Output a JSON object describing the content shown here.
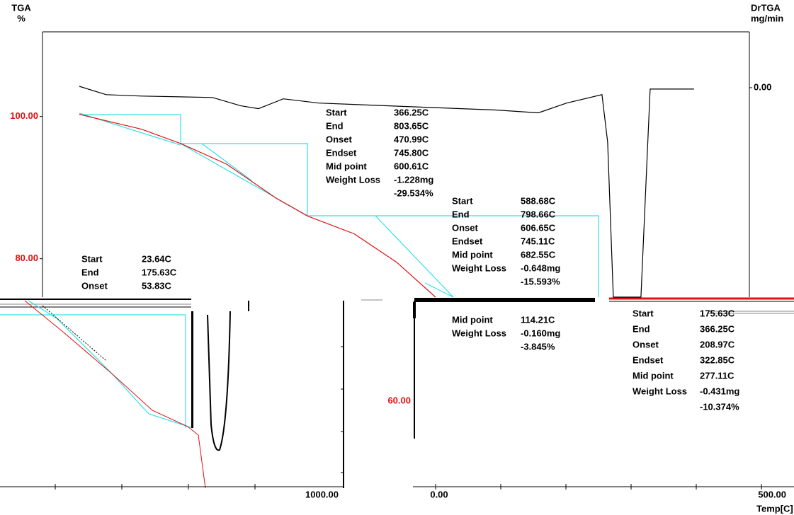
{
  "chart_data": {
    "type": "line",
    "ylabel": "TGA",
    "yunit": "%",
    "y2label": "DrTGA",
    "y2unit": "mg/min",
    "xlabel": "Temp[C]",
    "xlim": [
      -31.6,
      1029.3
    ],
    "ylim": [
      74.6,
      111.9
    ],
    "yticks": [
      {
        "value": 100,
        "label": "100.00"
      },
      {
        "value": 80,
        "label": "80.00"
      }
    ],
    "y2lim": [
      -1.5,
      0.4
    ],
    "y2ticks": [
      {
        "value": 0,
        "label": "0.00"
      }
    ],
    "series": [
      {
        "color": "#e01010",
        "axis": "y",
        "x": [
          23.6,
          117.2,
          175.6,
          244.7,
          319.2,
          366.3,
          436.1,
          499.9,
          558.3
        ],
        "values": [
          100.3,
          98.2,
          96.2,
          93.3,
          88.5,
          86.0,
          83.5,
          79.5,
          74.6
        ]
      },
      {
        "color": "#000000",
        "axis": "y2",
        "x": [
          23.6,
          64.0,
          117.2,
          223.5,
          266.0,
          292.6,
          329.8,
          383.0,
          542.4,
          648.7,
          712.5,
          755.0,
          808.1,
          816.6,
          825.1,
          866.6,
          880.4,
          946.3
        ],
        "values": [
          0.01,
          -0.05,
          -0.06,
          -0.07,
          -0.13,
          -0.15,
          -0.08,
          -0.11,
          -0.14,
          -0.16,
          -0.18,
          -0.11,
          -0.05,
          -0.39,
          -1.5,
          -1.5,
          -0.01,
          -0.01
        ]
      }
    ],
    "annotations": [
      {
        "rows": [
          [
            "Start",
            "366.25C"
          ],
          [
            "End",
            "803.65C"
          ],
          [
            "Onset",
            "470.99C"
          ],
          [
            "Endset",
            "745.80C"
          ],
          [
            "Mid point",
            "600.61C"
          ],
          [
            "Weight Loss",
            "-1.228mg"
          ],
          [
            "",
            "-29.534%"
          ]
        ]
      },
      {
        "rows": [
          [
            "Start",
            "588.68C"
          ],
          [
            "End",
            "798.66C"
          ],
          [
            "Onset",
            "606.65C"
          ],
          [
            "Endset",
            "745.11C"
          ],
          [
            "Mid point",
            "682.55C"
          ],
          [
            "Weight Loss",
            "-0.648mg"
          ],
          [
            "",
            "-15.593%"
          ]
        ]
      },
      {
        "rows": [
          [
            "Start",
            "23.64C"
          ],
          [
            "End",
            "175.63C"
          ],
          [
            "Onset",
            "53.83C"
          ]
        ]
      }
    ]
  },
  "lower_fragment": {
    "xtick_labels": [
      "1000.00",
      "0.00",
      "500.00"
    ],
    "ytick_label": "60.00",
    "annotations": [
      {
        "rows": [
          [
            "Mid point",
            "114.21C"
          ],
          [
            "Weight Loss",
            "-0.160mg"
          ],
          [
            "",
            "-3.845%"
          ]
        ]
      },
      {
        "rows": [
          [
            "Start",
            "175.63C"
          ],
          [
            "End",
            "366.25C"
          ],
          [
            "Onset",
            "208.97C"
          ],
          [
            "Endset",
            "322.85C"
          ],
          [
            "Mid point",
            "277.11C"
          ],
          [
            "Weight Loss",
            "-0.431mg"
          ],
          [
            "",
            "-10.374%"
          ]
        ]
      }
    ]
  }
}
